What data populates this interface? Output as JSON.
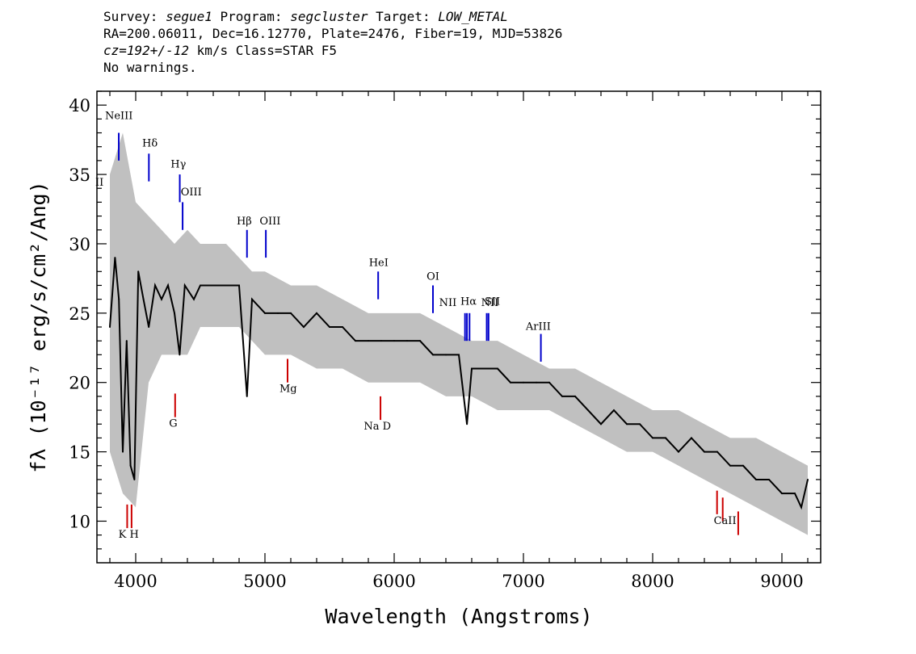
{
  "header": {
    "survey_label": "Survey: ",
    "survey": "segue1",
    "program_label": " Program: ",
    "program": "segcluster",
    "target_label": " Target: ",
    "target": "LOW_METAL",
    "line2": "RA=200.06011, Dec=16.12770, Plate=2476, Fiber=19, MJD=53826",
    "cz": "cz=192+/-12",
    "line3_rest": " km/s Class=STAR F5",
    "line4": "No warnings."
  },
  "chart_data": {
    "type": "line",
    "xlabel": "Wavelength (Angstroms)",
    "ylabel": "fλ (10⁻¹⁷ erg/s/cm²/Ang)",
    "xlim": [
      3700,
      9300
    ],
    "ylim": [
      7,
      41
    ],
    "xticks": [
      4000,
      5000,
      6000,
      7000,
      8000,
      9000
    ],
    "yticks": [
      10,
      15,
      20,
      25,
      30,
      35,
      40
    ],
    "series": [
      {
        "role": "flux",
        "color": "#000000",
        "x": [
          3800,
          3840,
          3870,
          3900,
          3930,
          3960,
          3990,
          4020,
          4060,
          4101,
          4150,
          4200,
          4250,
          4300,
          4340,
          4380,
          4450,
          4500,
          4600,
          4700,
          4800,
          4861,
          4900,
          5000,
          5100,
          5200,
          5300,
          5400,
          5500,
          5600,
          5700,
          5800,
          5900,
          6000,
          6100,
          6200,
          6300,
          6400,
          6500,
          6563,
          6600,
          6700,
          6800,
          6900,
          7000,
          7100,
          7200,
          7300,
          7400,
          7500,
          7600,
          7700,
          7800,
          7900,
          8000,
          8100,
          8200,
          8300,
          8400,
          8500,
          8600,
          8700,
          8800,
          8900,
          9000,
          9100,
          9150,
          9200
        ],
        "y": [
          24,
          29,
          26,
          15,
          23,
          14,
          13,
          28,
          26,
          24,
          27,
          26,
          27,
          25,
          22,
          27,
          26,
          27,
          27,
          27,
          27,
          19,
          26,
          25,
          25,
          25,
          24,
          25,
          24,
          24,
          23,
          23,
          23,
          23,
          23,
          23,
          22,
          22,
          22,
          17,
          21,
          21,
          21,
          20,
          20,
          20,
          20,
          19,
          19,
          18,
          17,
          18,
          17,
          17,
          16,
          16,
          15,
          16,
          15,
          15,
          14,
          14,
          13,
          13,
          12,
          12,
          11,
          13
        ]
      },
      {
        "role": "noise-envelope",
        "color": "#c0c0c0",
        "x": [
          3800,
          3900,
          4000,
          4100,
          4200,
          4300,
          4400,
          4500,
          4600,
          4700,
          4800,
          4900,
          5000,
          5200,
          5400,
          5600,
          5800,
          6000,
          6200,
          6400,
          6600,
          6800,
          7000,
          7200,
          7400,
          7600,
          7800,
          8000,
          8200,
          8400,
          8600,
          8800,
          9000,
          9200
        ],
        "upper": [
          35,
          38,
          33,
          32,
          31,
          30,
          31,
          30,
          30,
          30,
          29,
          28,
          28,
          27,
          27,
          26,
          25,
          25,
          25,
          24,
          23,
          23,
          22,
          21,
          21,
          20,
          19,
          18,
          18,
          17,
          16,
          16,
          15,
          14
        ],
        "lower": [
          15,
          12,
          11,
          20,
          22,
          22,
          22,
          24,
          24,
          24,
          24,
          23,
          22,
          22,
          21,
          21,
          20,
          20,
          20,
          19,
          19,
          18,
          18,
          18,
          17,
          16,
          15,
          15,
          14,
          13,
          12,
          11,
          10,
          9
        ]
      }
    ],
    "emission_lines": [
      {
        "label": "NeIII",
        "x": 3869,
        "color": "#0000cc",
        "y_from": 36,
        "y_to": 38
      },
      {
        "label": "Hδ",
        "x": 4102,
        "color": "#0000cc",
        "y_from": 34.5,
        "y_to": 36.5
      },
      {
        "label": "Hγ",
        "x": 4341,
        "color": "#0000cc",
        "y_from": 33,
        "y_to": 35
      },
      {
        "label": "OIII",
        "x": 4363,
        "color": "#0000cc",
        "y_from": 31,
        "y_to": 33
      },
      {
        "label": "Hβ",
        "x": 4861,
        "color": "#0000cc",
        "y_from": 29,
        "y_to": 31
      },
      {
        "label": "OIII",
        "x": 5007,
        "color": "#0000cc",
        "y_from": 29,
        "y_to": 31
      },
      {
        "label": "HeI",
        "x": 5876,
        "color": "#0000cc",
        "y_from": 26,
        "y_to": 28
      },
      {
        "label": "OI",
        "x": 6300,
        "color": "#0000cc",
        "y_from": 25,
        "y_to": 27
      },
      {
        "label": "NII",
        "x": 6548,
        "color": "#0000cc",
        "y_from": 23,
        "y_to": 25
      },
      {
        "label": "Hα",
        "x": 6563,
        "color": "#0000cc",
        "y_from": 23,
        "y_to": 25
      },
      {
        "label": "NII",
        "x": 6583,
        "color": "#0000cc",
        "y_from": 23,
        "y_to": 25
      },
      {
        "label": "SII",
        "x": 6716,
        "color": "#0000cc",
        "y_from": 23,
        "y_to": 25
      },
      {
        "label": "SII",
        "x": 6730,
        "color": "#0000cc",
        "y_from": 23,
        "y_to": 25
      },
      {
        "label": "ArIII",
        "x": 7135,
        "color": "#0000cc",
        "y_from": 21.5,
        "y_to": 23.5
      }
    ],
    "emission_line_labels": [
      {
        "text": "NeIII",
        "x": 3870,
        "y": 39
      },
      {
        "text": "Hδ",
        "x": 4110,
        "y": 37
      },
      {
        "text": "Hγ",
        "x": 4330,
        "y": 35.5
      },
      {
        "text": "OIII",
        "x": 4430,
        "y": 33.5
      },
      {
        "text": "Hβ",
        "x": 4840,
        "y": 31.4
      },
      {
        "text": "OIII",
        "x": 5040,
        "y": 31.4
      },
      {
        "text": "HeI",
        "x": 5880,
        "y": 28.4
      },
      {
        "text": "OI",
        "x": 6300,
        "y": 27.4
      },
      {
        "text": "NII",
        "x": 6415,
        "y": 25.5
      },
      {
        "text": "Hα",
        "x": 6575,
        "y": 25.6
      },
      {
        "text": "SII",
        "x": 6760,
        "y": 25.6
      },
      {
        "text": "NII",
        "x": 6740,
        "y": 25.5
      },
      {
        "text": "ArIII",
        "x": 7115,
        "y": 23.8
      }
    ],
    "absorption_lines": [
      {
        "label": "K",
        "x": 3934,
        "color": "#cc0000",
        "y_from": 9.5,
        "y_to": 11.2
      },
      {
        "label": "H",
        "x": 3968,
        "color": "#cc0000",
        "y_from": 9.5,
        "y_to": 11.2
      },
      {
        "label": "G",
        "x": 4305,
        "color": "#cc0000",
        "y_from": 17.5,
        "y_to": 19.2
      },
      {
        "label": "Mg",
        "x": 5175,
        "color": "#cc0000",
        "y_from": 20,
        "y_to": 21.7
      },
      {
        "label": "Na D",
        "x": 5894,
        "color": "#cc0000",
        "y_from": 17.3,
        "y_to": 19
      },
      {
        "label": "CaII",
        "x": 8498,
        "color": "#cc0000",
        "y_from": 10.5,
        "y_to": 12.2
      },
      {
        "label": "CaII",
        "x": 8542,
        "color": "#cc0000",
        "y_from": 10,
        "y_to": 11.7
      },
      {
        "label": "CaII",
        "x": 8662,
        "color": "#cc0000",
        "y_from": 9,
        "y_to": 10.7
      }
    ],
    "absorption_line_labels": [
      {
        "text": "K H",
        "x": 3945,
        "y": 8.8
      },
      {
        "text": "G",
        "x": 4290,
        "y": 16.8
      },
      {
        "text": "Mg",
        "x": 5180,
        "y": 19.3
      },
      {
        "text": "Na  D",
        "x": 5870,
        "y": 16.6
      },
      {
        "text": "CaII",
        "x": 8560,
        "y": 9.8
      }
    ],
    "edge_label": {
      "text": "II",
      "x": 3720,
      "y": 34.2
    }
  }
}
